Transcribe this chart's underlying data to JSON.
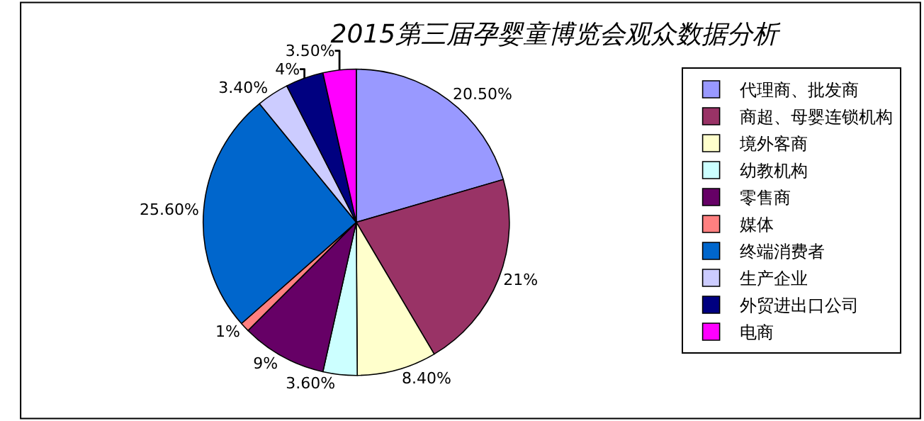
{
  "chart_data": {
    "type": "pie",
    "title": "2015第三届孕婴童博览会观众数据分析",
    "categories": [
      "代理商、批发商",
      "商超、母婴连锁机构",
      "境外客商",
      "幼教机构",
      "零售商",
      "媒体",
      "终端消费者",
      "生产企业",
      "外贸进出口公司",
      "电商"
    ],
    "values": [
      20.5,
      21,
      8.4,
      3.6,
      9,
      1,
      25.6,
      3.4,
      4,
      3.5
    ],
    "value_labels": [
      "20.50%",
      "21%",
      "8.40%",
      "3.60%",
      "9%",
      "1%",
      "25.60%",
      "3.40%",
      "4%",
      "3.50%"
    ],
    "colors": [
      "#9999ff",
      "#993366",
      "#ffffcc",
      "#ccffff",
      "#660066",
      "#ff8080",
      "#0066cc",
      "#ccccff",
      "#000080",
      "#ff00ff"
    ],
    "legend": "right"
  }
}
